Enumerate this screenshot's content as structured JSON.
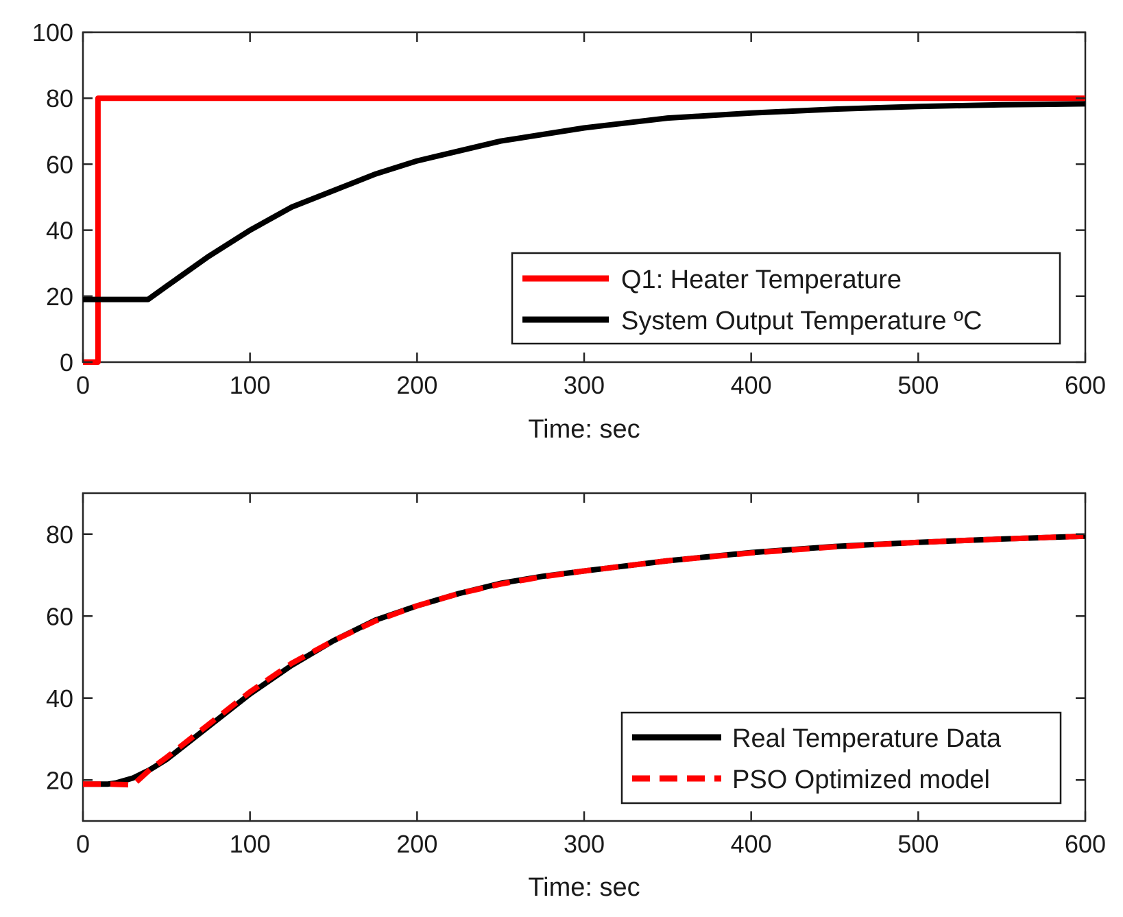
{
  "chart_data": [
    {
      "type": "line",
      "title": "",
      "xlabel": "Time: sec",
      "ylabel": "",
      "xlim": [
        0,
        600
      ],
      "ylim": [
        0,
        100
      ],
      "xticks": [
        0,
        100,
        200,
        300,
        400,
        500,
        600
      ],
      "yticks": [
        0,
        20,
        40,
        60,
        80,
        100
      ],
      "grid": false,
      "legend_position": "lower-right",
      "series": [
        {
          "name": "Q1: Heater Temperature",
          "color": "#ff0000",
          "dash": "solid",
          "x": [
            0,
            9,
            9,
            10,
            600
          ],
          "y": [
            0,
            0,
            80,
            80,
            80
          ]
        },
        {
          "name": "System Output Temperature ºC",
          "color": "#000000",
          "dash": "solid",
          "x": [
            0,
            20,
            39,
            50,
            75,
            100,
            125,
            150,
            175,
            200,
            250,
            300,
            350,
            400,
            450,
            500,
            550,
            600
          ],
          "y": [
            19,
            19,
            19,
            23,
            32,
            40,
            47,
            52,
            57,
            61,
            67,
            71,
            74,
            75.5,
            76.7,
            77.5,
            78,
            78.3
          ]
        }
      ]
    },
    {
      "type": "line",
      "title": "",
      "xlabel": "Time: sec",
      "ylabel": "",
      "xlim": [
        0,
        600
      ],
      "ylim": [
        10,
        90
      ],
      "xticks": [
        0,
        100,
        200,
        300,
        400,
        500,
        600
      ],
      "yticks": [
        20,
        40,
        60,
        80
      ],
      "grid": false,
      "legend_position": "lower-right",
      "series": [
        {
          "name": "Real Temperature Data",
          "color": "#000000",
          "dash": "solid",
          "x": [
            0,
            15,
            20,
            30,
            40,
            50,
            75,
            100,
            125,
            150,
            175,
            200,
            225,
            250,
            275,
            300,
            350,
            400,
            450,
            500,
            550,
            600
          ],
          "y": [
            19,
            19,
            19.3,
            20.5,
            22.5,
            25,
            33,
            41,
            48,
            54,
            59,
            62.5,
            65.5,
            68,
            69.7,
            71,
            73.5,
            75.5,
            77,
            78,
            78.8,
            79.5
          ]
        },
        {
          "name": "PSO Optimized model",
          "color": "#ff0000",
          "dash": "dashed",
          "x": [
            0,
            15,
            30,
            40,
            50,
            75,
            100,
            125,
            150,
            175,
            200,
            225,
            250,
            275,
            300,
            350,
            400,
            450,
            500,
            550,
            600
          ],
          "y": [
            19,
            19,
            18.8,
            22.5,
            25.5,
            33.5,
            41.5,
            48.5,
            54,
            58.8,
            62.5,
            65.5,
            67.8,
            69.6,
            71,
            73.5,
            75.4,
            76.9,
            78,
            78.8,
            79.5
          ]
        }
      ]
    }
  ]
}
